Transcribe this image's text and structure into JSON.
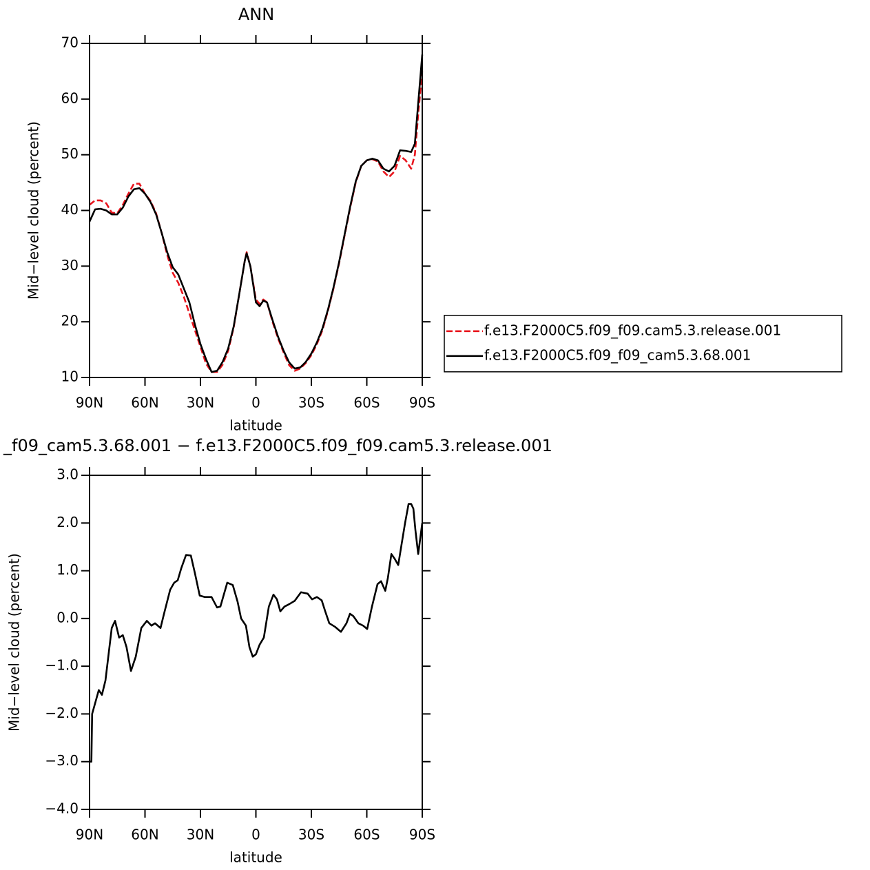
{
  "chart_data": [
    {
      "type": "line",
      "title": "ANN",
      "x_label": "latitude",
      "y_label": "Mid−level cloud (percent)",
      "xlim": [
        90,
        -90
      ],
      "xticks": [
        {
          "value": 90,
          "label": "90N"
        },
        {
          "value": 60,
          "label": "60N"
        },
        {
          "value": 30,
          "label": "30N"
        },
        0,
        {
          "value": -30,
          "label": "30S"
        },
        {
          "value": -60,
          "label": "60S"
        },
        {
          "value": -90,
          "label": "90S"
        }
      ],
      "ylim": [
        10,
        70
      ],
      "yticks": [
        10,
        20,
        30,
        40,
        50,
        60,
        70
      ],
      "legend": "right",
      "x": [
        90,
        87,
        84,
        81,
        78,
        75,
        72,
        69,
        66,
        63,
        60,
        57,
        54,
        51,
        48,
        45,
        42,
        39,
        36,
        33,
        30,
        27,
        24,
        21,
        18,
        15,
        12,
        9,
        6,
        5,
        3,
        0,
        -2,
        -4,
        -6,
        -9,
        -12,
        -15,
        -18,
        -21,
        -24,
        -27,
        -30,
        -33,
        -36,
        -39,
        -42,
        -45,
        -48,
        -51,
        -54,
        -57,
        -60,
        -63,
        -66,
        -69,
        -72,
        -75,
        -78,
        -81,
        -84,
        -86,
        -88,
        -90
      ],
      "series": [
        {
          "name": "f.e13.F2000C5.f09_f09.cam5.3.release.001",
          "color": "#e8141c",
          "dashed": true,
          "values": [
            41,
            41.8,
            41.8,
            41.3,
            39.6,
            39.5,
            41,
            43,
            44.8,
            44.8,
            43,
            41.7,
            39.5,
            36,
            32,
            28.8,
            27,
            24.5,
            21.5,
            18.5,
            15.5,
            12.5,
            11,
            11,
            12.3,
            14.8,
            19,
            25,
            31,
            32.5,
            30,
            24,
            23.2,
            24,
            23.5,
            20,
            17,
            14.5,
            12.2,
            11.2,
            11.6,
            12.6,
            14,
            16,
            18.5,
            22,
            26,
            30.5,
            35.5,
            40.5,
            45,
            48,
            49,
            49.2,
            48.8,
            47,
            46,
            47,
            49.8,
            49,
            47.5,
            50,
            58,
            65
          ]
        },
        {
          "name": "f.e13.F2000C5.f09_f09_cam5.3.68.001",
          "color": "#000000",
          "dashed": false,
          "values": [
            38,
            40.2,
            40.3,
            40,
            39.3,
            39.3,
            40.5,
            42.5,
            43.8,
            44,
            43,
            41.5,
            39.3,
            36,
            32.5,
            29.8,
            28.5,
            26,
            23.5,
            19.5,
            16,
            13.3,
            11,
            11.2,
            12.8,
            15.2,
            19.2,
            25,
            31,
            32.3,
            30,
            23.5,
            22.8,
            23.8,
            23.5,
            20.3,
            17.3,
            14.8,
            12.7,
            11.6,
            11.8,
            12.8,
            14.3,
            16.3,
            18.8,
            22.2,
            26.2,
            30.7,
            35.7,
            40.7,
            45.2,
            48,
            49,
            49.3,
            49,
            47.5,
            47,
            48,
            50.8,
            50.7,
            50.5,
            52,
            60,
            68
          ]
        }
      ]
    },
    {
      "type": "line",
      "title": "_f09_cam5.3.68.001 − f.e13.F2000C5.f09_f09.cam5.3.release.001",
      "x_label": "latitude",
      "y_label": "Mid−level cloud (percent)",
      "xlim": [
        90,
        -90
      ],
      "xticks": [
        {
          "value": 90,
          "label": "90N"
        },
        {
          "value": 60,
          "label": "60N"
        },
        {
          "value": 30,
          "label": "30N"
        },
        0,
        {
          "value": -30,
          "label": "30S"
        },
        {
          "value": -60,
          "label": "60S"
        },
        {
          "value": -90,
          "label": "90S"
        }
      ],
      "ylim": [
        -4,
        3
      ],
      "yticks": [
        {
          "value": -4,
          "label": "−4.0"
        },
        {
          "value": -3,
          "label": "−3.0"
        },
        {
          "value": -2,
          "label": "−2.0"
        },
        {
          "value": -1,
          "label": "−1.0"
        },
        {
          "value": 0,
          "label": "0.0"
        },
        {
          "value": 1,
          "label": "1.0"
        },
        {
          "value": 2,
          "label": "2.0"
        },
        {
          "value": 3,
          "label": "3.0"
        }
      ],
      "x": [
        90,
        89,
        88.6,
        85,
        83.3,
        81.4,
        78,
        76.2,
        74,
        72,
        70,
        67.6,
        65,
        62,
        59,
        56.5,
        54.6,
        51.6,
        49.7,
        46.4,
        44.2,
        42.3,
        40.4,
        37.8,
        35.2,
        33,
        30.4,
        27.8,
        24,
        21,
        19.2,
        15.5,
        12.5,
        9.9,
        8,
        5.4,
        3.5,
        1.7,
        0,
        -2,
        -4.3,
        -7,
        -9.5,
        -11.4,
        -13.2,
        -15.5,
        -18,
        -21,
        -24.4,
        -28,
        -30.4,
        -33,
        -35.6,
        -37.5,
        -39.7,
        -43,
        -46,
        -49,
        -50.9,
        -52.7,
        -55.4,
        -58,
        -60.2,
        -62.8,
        -65.8,
        -67.7,
        -70,
        -71.4,
        -73.3,
        -75.1,
        -77,
        -78.8,
        -80.7,
        -82.6,
        -84,
        -85.2,
        -86.3,
        -87.8,
        -90
      ],
      "series": [
        {
          "color": "#000000",
          "dashed": false,
          "values": [
            -3,
            -3,
            -2,
            -1.5,
            -1.6,
            -1.3,
            -0.2,
            -0.05,
            -0.4,
            -0.35,
            -0.6,
            -1.1,
            -0.8,
            -0.2,
            -0.05,
            -0.15,
            -0.1,
            -0.2,
            0.1,
            0.6,
            0.75,
            0.8,
            1.05,
            1.33,
            1.32,
            0.95,
            0.48,
            0.45,
            0.45,
            0.23,
            0.25,
            0.75,
            0.7,
            0.35,
            0,
            -0.15,
            -0.6,
            -0.8,
            -0.75,
            -0.55,
            -0.4,
            0.25,
            0.5,
            0.4,
            0.15,
            0.25,
            0.3,
            0.37,
            0.55,
            0.52,
            0.4,
            0.45,
            0.38,
            0.15,
            -0.1,
            -0.18,
            -0.28,
            -0.1,
            0.1,
            0.05,
            -0.1,
            -0.15,
            -0.22,
            0.25,
            0.72,
            0.78,
            0.58,
            0.85,
            1.35,
            1.25,
            1.12,
            1.55,
            2,
            2.4,
            2.4,
            2.3,
            1.85,
            1.35,
            2
          ]
        }
      ]
    }
  ]
}
